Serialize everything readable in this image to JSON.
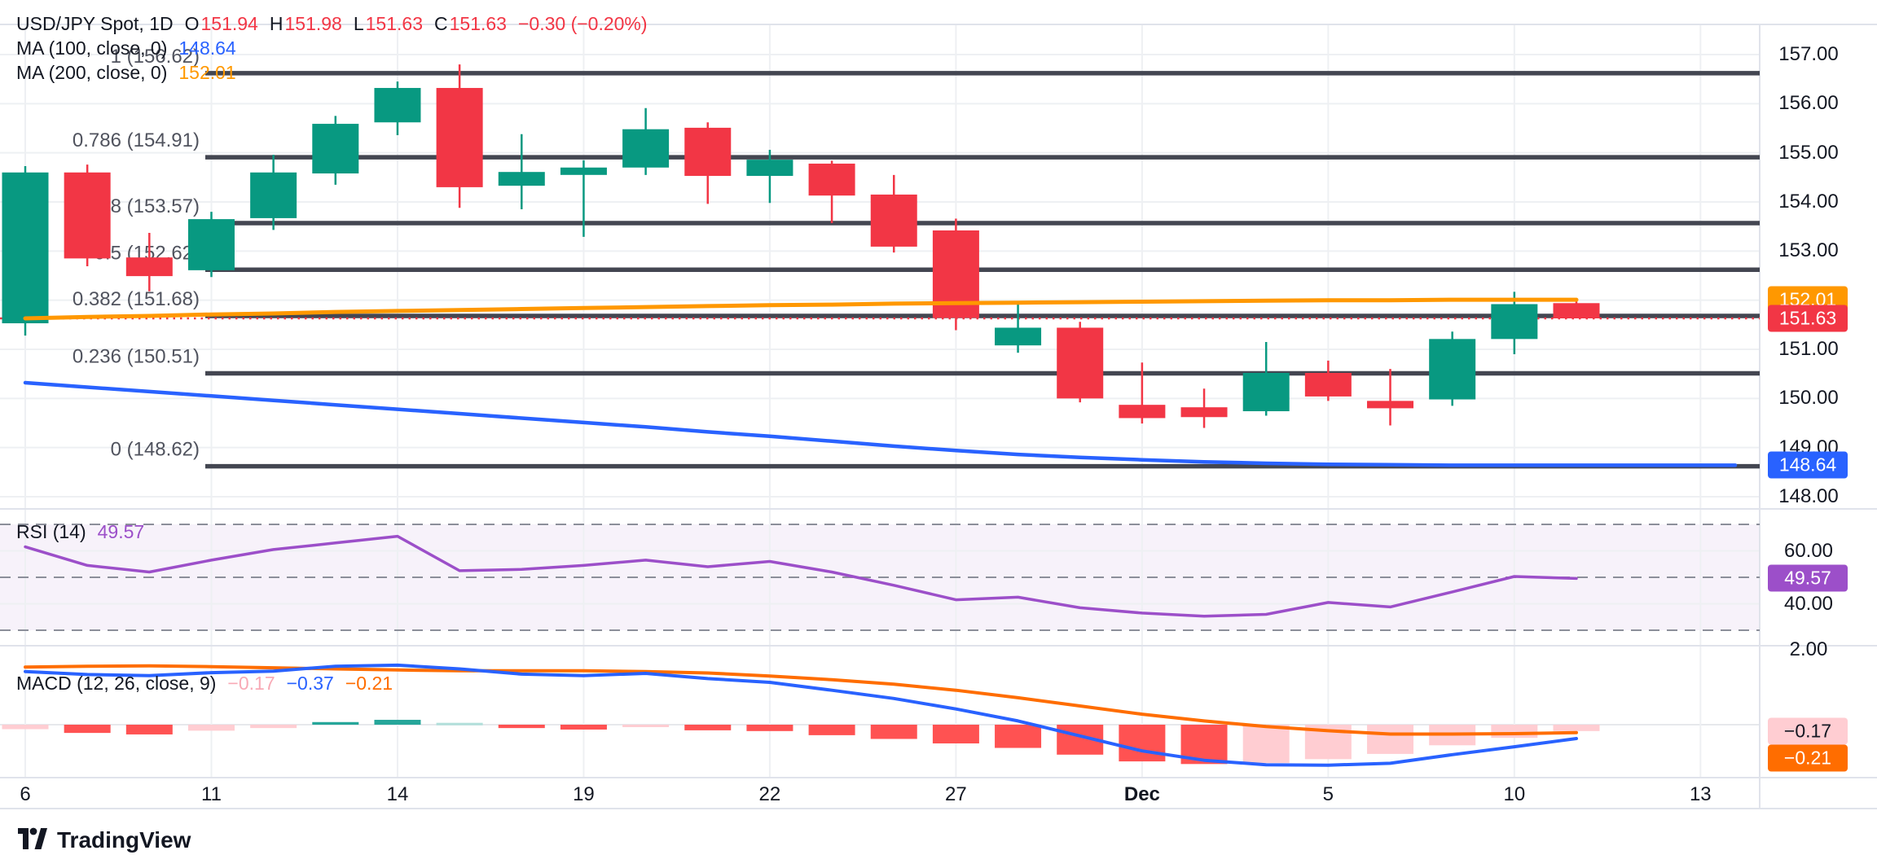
{
  "header": {
    "symbol": "USD/JPY Spot, 1D",
    "o_label": "O",
    "o": "151.94",
    "h_label": "H",
    "h": "151.98",
    "l_label": "L",
    "l": "151.63",
    "c_label": "C",
    "c": "151.63",
    "change": "−0.30 (−0.20%)"
  },
  "ma100": {
    "label": "MA (100, close, 0)",
    "value": "148.64"
  },
  "ma200": {
    "label": "MA (200, close, 0)",
    "value": "152.01"
  },
  "rsi_legend": {
    "label": "RSI (14)",
    "value": "49.57"
  },
  "macd_legend": {
    "label": "MACD (12, 26, close, 9)",
    "hist": "−0.17",
    "macd": "−0.37",
    "signal": "−0.21"
  },
  "logo": {
    "text": "TradingView"
  },
  "colors": {
    "up": "#089981",
    "down": "#f23645",
    "ma100": "#2962ff",
    "ma200": "#ff9800",
    "fib_line": "#434651",
    "fib_text": "#50535e",
    "close_line": "#f23645",
    "rsi_line": "#9c4fc9",
    "rsi_band": "rgba(149,87,194,0.08)",
    "rsi_dash": "#8c8f9a",
    "macd_line": "#2962ff",
    "signal_line": "#ff6d00",
    "hist_down": "#ff5252",
    "hist_down_light": "#ffcdd2",
    "hist_up": "#26a69a",
    "hist_up_light": "#b2dfdb",
    "grid": "#eef0f3",
    "border": "#e0e3eb"
  },
  "chart_data": {
    "type": "candlestick+indicators",
    "timeframe": "1D",
    "dates": [
      "Nov 6",
      "7",
      "8",
      "11",
      "12",
      "13",
      "14",
      "15",
      "18",
      "19",
      "20",
      "21",
      "22",
      "25",
      "26",
      "27",
      "28",
      "29",
      "Dec 2",
      "3",
      "4",
      "5",
      "6",
      "9",
      "10",
      "11"
    ],
    "candles": [
      [
        151.53,
        154.73,
        151.28,
        154.6
      ],
      [
        154.6,
        154.76,
        152.69,
        152.85
      ],
      [
        152.87,
        153.37,
        152.18,
        152.49
      ],
      [
        152.61,
        153.8,
        152.47,
        153.65
      ],
      [
        153.67,
        154.96,
        153.43,
        154.6
      ],
      [
        154.58,
        155.75,
        154.35,
        155.59
      ],
      [
        155.62,
        156.45,
        155.36,
        156.32
      ],
      [
        156.32,
        156.8,
        153.88,
        154.3
      ],
      [
        154.33,
        155.38,
        153.85,
        154.61
      ],
      [
        154.55,
        154.85,
        153.29,
        154.7
      ],
      [
        154.7,
        155.91,
        154.55,
        155.48
      ],
      [
        155.51,
        155.62,
        153.96,
        154.53
      ],
      [
        154.53,
        155.06,
        153.98,
        154.86
      ],
      [
        154.78,
        154.84,
        153.57,
        154.13
      ],
      [
        154.15,
        154.55,
        152.97,
        153.09
      ],
      [
        153.42,
        153.66,
        151.39,
        151.64
      ],
      [
        151.08,
        151.94,
        150.93,
        151.44
      ],
      [
        151.44,
        151.56,
        149.92,
        150.0
      ],
      [
        149.87,
        150.73,
        149.49,
        149.6
      ],
      [
        149.82,
        150.2,
        149.4,
        149.62
      ],
      [
        149.74,
        151.15,
        149.65,
        150.52
      ],
      [
        150.52,
        150.77,
        149.95,
        150.04
      ],
      [
        149.95,
        150.6,
        149.45,
        149.8
      ],
      [
        149.98,
        151.36,
        149.85,
        151.21
      ],
      [
        151.21,
        152.17,
        150.9,
        151.92
      ],
      [
        151.94,
        151.98,
        151.63,
        151.63
      ]
    ],
    "fib_levels": [
      {
        "label": "1 (156.62)",
        "price": 156.62
      },
      {
        "label": "0.786 (154.91)",
        "price": 154.91
      },
      {
        "label": "0.618 (153.57)",
        "price": 153.57
      },
      {
        "label": "0.5 (152.62)",
        "price": 152.62
      },
      {
        "label": "0.382 (151.68)",
        "price": 151.68
      },
      {
        "label": "0.236 (150.51)",
        "price": 150.51
      },
      {
        "label": "0 (148.62)",
        "price": 148.62
      }
    ],
    "close_price_line": 151.63,
    "ma100_series": [
      150.32,
      150.23,
      150.14,
      150.05,
      149.96,
      149.87,
      149.78,
      149.69,
      149.6,
      149.51,
      149.42,
      149.32,
      149.23,
      149.13,
      149.03,
      148.94,
      148.86,
      148.8,
      148.75,
      148.71,
      148.68,
      148.66,
      148.65,
      148.64,
      148.64,
      148.64
    ],
    "ma200_series": [
      151.63,
      151.66,
      151.68,
      151.71,
      151.73,
      151.76,
      151.78,
      151.8,
      151.82,
      151.84,
      151.86,
      151.88,
      151.9,
      151.91,
      151.93,
      151.94,
      151.95,
      151.96,
      151.97,
      151.98,
      151.99,
      152.0,
      152.0,
      152.01,
      152.01,
      152.01
    ],
    "price_axis_ticks": [
      "157.00",
      "156.00",
      "155.00",
      "154.00",
      "153.00",
      "151.00",
      "150.00",
      "149.00",
      "148.00"
    ],
    "x_axis_ticks": [
      {
        "label": "6",
        "index": 0
      },
      {
        "label": "11",
        "index": 3
      },
      {
        "label": "14",
        "index": 6
      },
      {
        "label": "19",
        "index": 9
      },
      {
        "label": "22",
        "index": 12
      },
      {
        "label": "27",
        "index": 15
      },
      {
        "label": "Dec",
        "index": 18,
        "bold": true
      },
      {
        "label": "5",
        "index": 21
      },
      {
        "label": "10",
        "index": 24
      },
      {
        "label": "13",
        "index": 27
      }
    ],
    "rsi": {
      "series": [
        61.5,
        54.5,
        52.0,
        56.5,
        60.5,
        63.0,
        65.5,
        52.5,
        53.0,
        54.5,
        56.5,
        54.0,
        56.0,
        52.0,
        47.0,
        41.5,
        42.5,
        38.5,
        36.5,
        35.3,
        36.0,
        40.5,
        38.8,
        44.5,
        50.3,
        49.57
      ],
      "bands": [
        70,
        50,
        30
      ],
      "axis_ticks": [
        "60.00",
        "40.00"
      ],
      "last": 49.57
    },
    "macd": {
      "hist": [
        -0.12,
        -0.22,
        -0.26,
        -0.16,
        -0.09,
        0.07,
        0.13,
        0.05,
        -0.09,
        -0.13,
        -0.05,
        -0.15,
        -0.17,
        -0.28,
        -0.38,
        -0.5,
        -0.62,
        -0.8,
        -0.98,
        -1.05,
        -1.02,
        -0.92,
        -0.78,
        -0.55,
        -0.35,
        -0.17
      ],
      "macd_line": [
        1.42,
        1.34,
        1.31,
        1.39,
        1.43,
        1.56,
        1.59,
        1.49,
        1.35,
        1.31,
        1.37,
        1.23,
        1.13,
        0.92,
        0.7,
        0.42,
        0.1,
        -0.3,
        -0.7,
        -0.95,
        -1.07,
        -1.08,
        -1.03,
        -0.8,
        -0.59,
        -0.37
      ],
      "signal_line": [
        1.54,
        1.56,
        1.57,
        1.55,
        1.52,
        1.49,
        1.46,
        1.44,
        1.44,
        1.44,
        1.42,
        1.38,
        1.3,
        1.2,
        1.08,
        0.92,
        0.72,
        0.5,
        0.28,
        0.1,
        -0.05,
        -0.16,
        -0.25,
        -0.25,
        -0.24,
        -0.21
      ],
      "axis_tick": "2.00",
      "last_hist": -0.17,
      "last_macd": -0.37,
      "last_signal": -0.21
    },
    "badges": {
      "price_pane": [
        {
          "text": "152.01",
          "price": 152.01,
          "bg": "#ff9800",
          "fg": "#ffffff",
          "name": "ma200-price-badge"
        },
        {
          "text": "151.63",
          "price": 151.63,
          "bg": "#f23645",
          "fg": "#ffffff",
          "name": "last-price-badge"
        },
        {
          "text": "148.64",
          "price": 148.64,
          "bg": "#2962ff",
          "fg": "#ffffff",
          "name": "ma100-price-badge"
        }
      ],
      "rsi_pane": [
        {
          "text": "49.57",
          "value": 49.57,
          "bg": "#9c4fc9",
          "fg": "#ffffff",
          "name": "rsi-value-badge"
        }
      ],
      "macd_pane": [
        {
          "text": "−0.17",
          "value": -0.17,
          "bg": "#ffcdd2",
          "fg": "#131722",
          "name": "macd-hist-badge"
        },
        {
          "text": "−0.21",
          "value": -0.21,
          "bg": "#ff6d00",
          "fg": "#ffffff",
          "name": "macd-signal-badge"
        }
      ]
    }
  }
}
